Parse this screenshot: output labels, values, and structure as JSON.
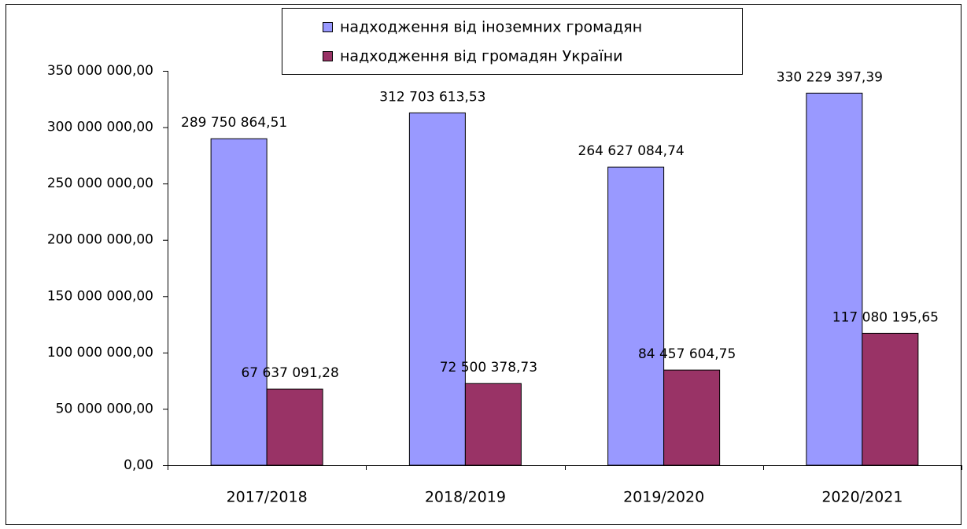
{
  "chart_data": {
    "type": "bar",
    "categories": [
      "2017/2018",
      "2018/2019",
      "2019/2020",
      "2020/2021"
    ],
    "series": [
      {
        "name": "надходження від іноземних громадян",
        "color": "#9999ff",
        "values": [
          289750864.51,
          312703613.53,
          264627084.74,
          330229397.39
        ],
        "value_labels": [
          "289 750 864,51",
          "312 703 613,53",
          "264 627 084,74",
          "330 229 397,39"
        ]
      },
      {
        "name": "надходження від громадян України",
        "color": "#993366",
        "values": [
          67637091.28,
          72500378.73,
          84457604.75,
          117080195.65
        ],
        "value_labels": [
          "67 637 091,28",
          "72 500 378,73",
          "84 457 604,75",
          "117 080 195,65"
        ]
      }
    ],
    "ylim": [
      0,
      350000000
    ],
    "yticks": [
      {
        "value": 0,
        "label": "0,00"
      },
      {
        "value": 50000000,
        "label": "50 000 000,00"
      },
      {
        "value": 100000000,
        "label": "100 000 000,00"
      },
      {
        "value": 150000000,
        "label": "150 000 000,00"
      },
      {
        "value": 200000000,
        "label": "200 000 000,00"
      },
      {
        "value": 250000000,
        "label": "250 000 000,00"
      },
      {
        "value": 300000000,
        "label": "300 000 000,00"
      },
      {
        "value": 350000000,
        "label": "350 000 000,00"
      }
    ],
    "grid": false,
    "legend": "top"
  }
}
